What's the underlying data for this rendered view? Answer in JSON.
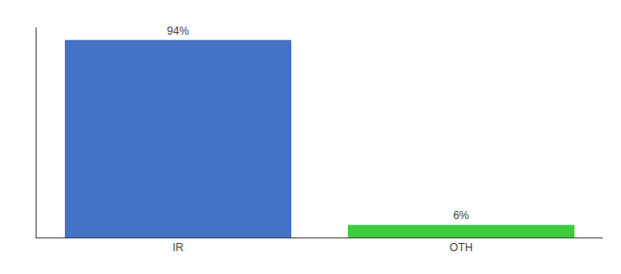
{
  "chart_data": {
    "type": "bar",
    "categories": [
      "IR",
      "OTH"
    ],
    "values": [
      94,
      6
    ],
    "colors": [
      "#4472c4",
      "#3dcc3d"
    ],
    "ylim": [
      0,
      100
    ],
    "data_labels": true,
    "value_labels": [
      "94%",
      "6%"
    ],
    "tick_labels": "x",
    "grid": false
  }
}
